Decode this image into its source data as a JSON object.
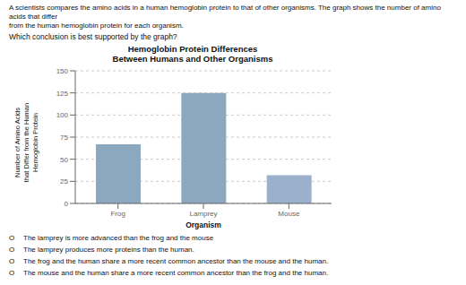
{
  "chart_data": {
    "type": "bar",
    "title": "Hemoglobin Protein Differences\nBetween Humans and Other Organisms",
    "categories": [
      "Frog",
      "Lamprey",
      "Mouse"
    ],
    "values": [
      67,
      125,
      32
    ],
    "colors": [
      "#8ba8c0",
      "#8ba8c0",
      "#9ab0cc"
    ],
    "xlabel": "Organism",
    "ylabel": "Number of Amino Acids\nthat Differ from the Human\nHemoglobin Protein",
    "ylim": [
      0,
      150
    ],
    "yticks": [
      0,
      25,
      50,
      75,
      100,
      125,
      150
    ],
    "grid": true,
    "annotations": [
      "A scientists compares the amino acids in a human hemoglobin protein to that of other organisms. The graph shows the number of amino acids that differ\nfrom the human hemoglobin protein for each organism.",
      "Which conclusion is best supported by the graph?"
    ],
    "choices": [
      "The lamprey is more advanced than the frog and the mouse",
      "The lamprey produces more proteins than the human.",
      "The frog and the human share a more recent common ancestor than the mouse and the human.",
      "The mouse and the human share a more recent common ancestor than the frog and the human."
    ],
    "choice_marker": "O"
  }
}
